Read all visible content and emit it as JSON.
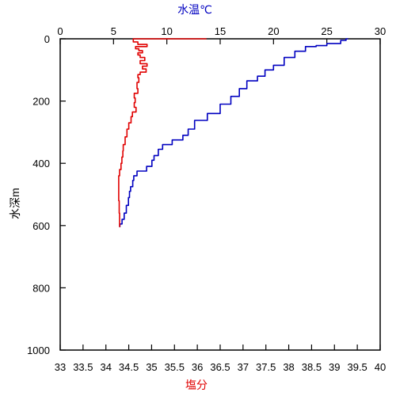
{
  "chart_data": {
    "type": "line",
    "colors": {
      "temperature": "#0000c0",
      "salinity": "#e00000",
      "axis": "#000000"
    },
    "top_axis": {
      "label": "水温℃",
      "range": [
        0,
        30
      ],
      "ticks": [
        0,
        5,
        10,
        15,
        20,
        25,
        30
      ],
      "tick_labels": [
        "0",
        "5",
        "10",
        "15",
        "20",
        "25",
        "30"
      ]
    },
    "bottom_axis": {
      "label": "塩分",
      "range": [
        33,
        40
      ],
      "ticks": [
        33,
        33.5,
        34,
        34.5,
        35,
        35.5,
        36,
        36.5,
        37,
        37.5,
        38,
        38.5,
        39,
        39.5,
        40
      ],
      "tick_labels": [
        "33",
        "33.5",
        "34",
        "34.5",
        "35",
        "35.5",
        "36",
        "36.5",
        "37",
        "37.5",
        "38",
        "38.5",
        "39",
        "39.5",
        "40"
      ]
    },
    "y_axis": {
      "label": "水深m",
      "range": [
        0,
        1000
      ],
      "inverted": true,
      "ticks": [
        0,
        200,
        400,
        600,
        800,
        1000
      ],
      "tick_labels": [
        "0",
        "200",
        "400",
        "600",
        "800",
        "1000"
      ]
    },
    "grid": false,
    "series": [
      {
        "key": "temperature",
        "axis": "top",
        "points": [
          [
            27.0,
            0
          ],
          [
            26.8,
            5
          ],
          [
            26.3,
            15
          ],
          [
            25.0,
            22
          ],
          [
            24.0,
            25
          ],
          [
            23.0,
            40
          ],
          [
            22.0,
            60
          ],
          [
            21.0,
            85
          ],
          [
            20.0,
            100
          ],
          [
            19.2,
            120
          ],
          [
            18.5,
            135
          ],
          [
            17.5,
            160
          ],
          [
            16.8,
            185
          ],
          [
            16.0,
            210
          ],
          [
            15.0,
            240
          ],
          [
            13.8,
            262
          ],
          [
            12.6,
            290
          ],
          [
            12.0,
            310
          ],
          [
            11.5,
            325
          ],
          [
            10.5,
            340
          ],
          [
            9.6,
            355
          ],
          [
            9.2,
            375
          ],
          [
            8.8,
            390
          ],
          [
            8.6,
            410
          ],
          [
            8.1,
            425
          ],
          [
            7.2,
            440
          ],
          [
            6.9,
            455
          ],
          [
            6.8,
            475
          ],
          [
            6.6,
            490
          ],
          [
            6.5,
            510
          ],
          [
            6.4,
            535
          ],
          [
            6.2,
            560
          ],
          [
            6.0,
            580
          ],
          [
            5.8,
            595
          ],
          [
            5.6,
            605
          ]
        ]
      },
      {
        "key": "salinity",
        "axis": "bottom",
        "points": [
          [
            36.2,
            0
          ],
          [
            34.6,
            1
          ],
          [
            34.6,
            10
          ],
          [
            34.7,
            18
          ],
          [
            34.9,
            25
          ],
          [
            34.65,
            32
          ],
          [
            34.72,
            38
          ],
          [
            34.8,
            45
          ],
          [
            34.7,
            52
          ],
          [
            34.75,
            60
          ],
          [
            34.85,
            70
          ],
          [
            34.75,
            80
          ],
          [
            34.9,
            88
          ],
          [
            34.8,
            97
          ],
          [
            34.88,
            107
          ],
          [
            34.75,
            115
          ],
          [
            34.7,
            125
          ],
          [
            34.72,
            140
          ],
          [
            34.68,
            160
          ],
          [
            34.7,
            175
          ],
          [
            34.62,
            190
          ],
          [
            34.64,
            205
          ],
          [
            34.62,
            220
          ],
          [
            34.66,
            235
          ],
          [
            34.58,
            250
          ],
          [
            34.55,
            270
          ],
          [
            34.5,
            290
          ],
          [
            34.46,
            315
          ],
          [
            34.42,
            340
          ],
          [
            34.38,
            360
          ],
          [
            34.37,
            380
          ],
          [
            34.35,
            400
          ],
          [
            34.33,
            420
          ],
          [
            34.3,
            440
          ],
          [
            34.28,
            450
          ],
          [
            34.28,
            480
          ],
          [
            34.28,
            520
          ],
          [
            34.29,
            560
          ],
          [
            34.3,
            605
          ]
        ]
      }
    ]
  }
}
